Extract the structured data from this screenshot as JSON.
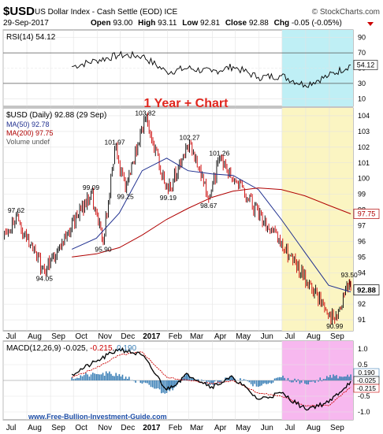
{
  "header": {
    "symbol": "$USD",
    "name": "US Dollar Index - Cash Settle (EOD)",
    "exchange": "ICE",
    "source": "© StockCharts.com",
    "date": "29-Sep-2017",
    "open_label": "Open",
    "open": "93.00",
    "high_label": "High",
    "high": "93.11",
    "low_label": "Low",
    "low": "92.81",
    "close_label": "Close",
    "close": "92.88",
    "chg_label": "Chg",
    "chg": "-0.05 (-0.05%)"
  },
  "annotation_title": "1 Year + Chart",
  "watermark": "www.Free-Bullion-Investment-Guide.com",
  "colors": {
    "price_up": "#000000",
    "price_down": "#cc0000",
    "ma50": "#1f2f8f",
    "ma200": "#b00000",
    "rsi_fill_over": "#2e8b2e",
    "rsi_highlight": "#bfeff5",
    "price_highlight": "#fbf5c2",
    "macd_highlight": "#f7b8ef",
    "histogram": "#3a7fb6"
  },
  "chart_data": [
    {
      "type": "line",
      "panel": "rsi",
      "legend": "RSI(14) 54.12",
      "y_ticks": [
        10,
        30,
        50,
        70,
        90
      ],
      "ylim": [
        0,
        100
      ],
      "last_value": "54.12",
      "x": [
        "2016-09-29",
        "2016-10-31",
        "2016-11-30",
        "2016-12-30",
        "2017-01-31",
        "2017-02-28",
        "2017-03-31",
        "2017-04-28",
        "2017-05-31",
        "2017-06-30",
        "2017-07-31",
        "2017-08-31",
        "2017-09-29"
      ],
      "values": [
        52,
        60,
        67,
        66,
        45,
        50,
        45,
        52,
        38,
        40,
        28,
        40,
        54
      ]
    },
    {
      "type": "line",
      "panel": "price",
      "legend": [
        "$USD (Daily) 92.88 (29 Sep)",
        "MA(50) 92.78",
        "MA(200) 97.75",
        "Volume undef"
      ],
      "y_ticks": [
        91,
        92,
        93,
        94,
        95,
        96,
        97,
        98,
        99,
        100,
        101,
        102,
        103,
        104
      ],
      "ylim": [
        90.3,
        104.5
      ],
      "last_price": "92.88",
      "last_ma200": "97.75",
      "x": [
        "2016-09-29",
        "2016-10-31",
        "2016-11-30",
        "2016-12-30",
        "2017-01-31",
        "2017-02-28",
        "2017-03-31",
        "2017-04-28",
        "2017-05-31",
        "2017-06-30",
        "2017-07-31",
        "2017-08-31",
        "2017-09-29"
      ],
      "series": [
        {
          "values": [
            95.4,
            98.4,
            101.4,
            102.2,
            99.5,
            101.2,
            100.3,
            99.1,
            97.0,
            95.6,
            92.9,
            92.6,
            92.88
          ]
        },
        {
          "values": [
            95.5,
            96.2,
            97.8,
            100.5,
            101.3,
            100.5,
            100.3,
            100.2,
            99.3,
            97.4,
            95.3,
            93.2,
            92.78
          ]
        },
        {
          "values": [
            95.0,
            95.2,
            95.6,
            96.4,
            97.4,
            98.1,
            98.8,
            99.2,
            99.4,
            99.3,
            98.9,
            98.3,
            97.75
          ]
        }
      ],
      "annotations": [
        {
          "label": "97.62",
          "x": "2016-07-18",
          "y": 97.62
        },
        {
          "label": "94.05",
          "x": "2016-08-24",
          "y": 94.05
        },
        {
          "label": "99.09",
          "x": "2016-10-24",
          "y": 99.09
        },
        {
          "label": "95.90",
          "x": "2016-11-09",
          "y": 95.9
        },
        {
          "label": "101.97",
          "x": "2016-11-24",
          "y": 101.97
        },
        {
          "label": "99.25",
          "x": "2016-12-08",
          "y": 99.25
        },
        {
          "label": "103.82",
          "x": "2017-01-03",
          "y": 103.82
        },
        {
          "label": "99.19",
          "x": "2017-02-02",
          "y": 99.19
        },
        {
          "label": "102.27",
          "x": "2017-03-02",
          "y": 102.27
        },
        {
          "label": "98.67",
          "x": "2017-03-27",
          "y": 98.67
        },
        {
          "label": "101.26",
          "x": "2017-04-10",
          "y": 101.26
        },
        {
          "label": "93.50",
          "x": "2017-09-27",
          "y": 93.5
        },
        {
          "label": "90.99",
          "x": "2017-09-08",
          "y": 90.99
        }
      ]
    },
    {
      "type": "line",
      "panel": "macd",
      "legend": {
        "name": "MACD(12,26,9)",
        "macd": "-0.025",
        "signal": "-0.215",
        "hist": "0.190"
      },
      "y_ticks": [
        -1.0,
        -0.5,
        0.0,
        0.5,
        1.0
      ],
      "y_tick_labels": [
        "-1.0",
        "-0.5",
        "0.0",
        "0.5",
        "1.0"
      ],
      "ylim": [
        -1.25,
        1.25
      ],
      "last_values": [
        "0.190",
        "-0.025",
        "-0.215"
      ],
      "x": [
        "2016-09-29",
        "2016-10-31",
        "2016-11-30",
        "2016-12-30",
        "2017-01-31",
        "2017-02-28",
        "2017-03-31",
        "2017-04-28",
        "2017-05-31",
        "2017-06-30",
        "2017-07-31",
        "2017-08-31",
        "2017-09-29"
      ],
      "series": [
        {
          "values": [
            0.2,
            0.6,
            1.0,
            0.8,
            -0.3,
            0.2,
            -0.2,
            0.1,
            -0.6,
            -0.4,
            -0.9,
            -0.7,
            -0.025
          ]
        },
        {
          "values": [
            0.1,
            0.4,
            0.8,
            0.9,
            0.1,
            0.0,
            -0.1,
            0.0,
            -0.4,
            -0.5,
            -0.8,
            -0.8,
            -0.215
          ]
        }
      ]
    }
  ],
  "x_axis_labels": [
    "Jul",
    "Aug",
    "Sep",
    "Oct",
    "Nov",
    "Dec",
    "2017",
    "Feb",
    "Mar",
    "Apr",
    "May",
    "Jun",
    "Jul",
    "Aug",
    "Sep"
  ]
}
